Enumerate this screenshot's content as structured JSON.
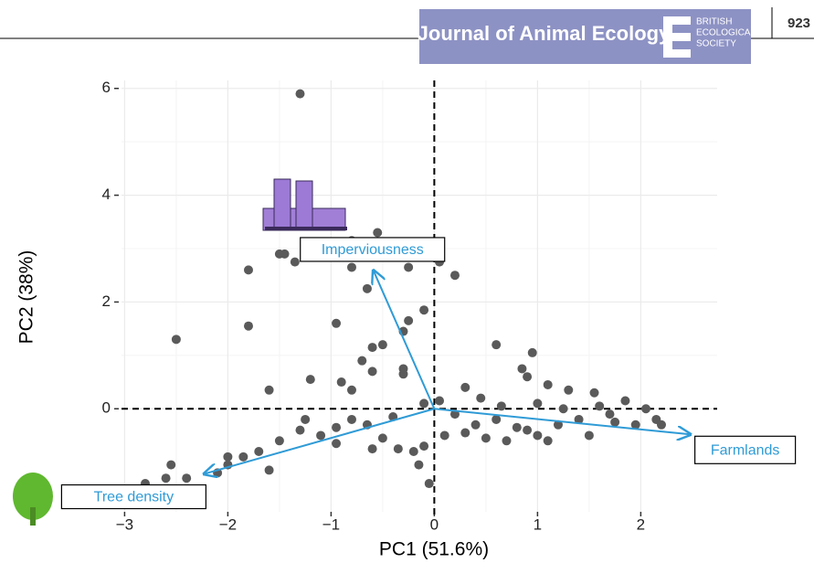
{
  "header": {
    "journal": "Journal of Animal Ecology",
    "society": [
      "BRITISH",
      "ECOLOGICAL",
      "SOCIETY"
    ],
    "page": "923"
  },
  "chart_data": {
    "type": "scatter",
    "x_label": "PC1 (51.6%)",
    "y_label": "PC2 (38%)",
    "xlim": [
      -3.03,
      2.74
    ],
    "ylim": [
      -1.93,
      6.15
    ],
    "xticks": [
      {
        "value": -3,
        "label": "−3"
      },
      {
        "value": -2,
        "label": "−2"
      },
      {
        "value": -1,
        "label": "−1"
      },
      0,
      1,
      2
    ],
    "yticks": [
      0,
      2,
      4,
      6
    ],
    "grid": true,
    "reference_lines": {
      "x": 0,
      "y": 0
    },
    "color": "#5a5a5a",
    "x": [
      -1.3,
      -2.5,
      -1.8,
      -1.5,
      -1.45,
      -1.35,
      -0.55,
      -0.8,
      -0.8,
      -0.65,
      -0.25,
      0.05,
      0.2,
      -1.8,
      -0.95,
      -0.5,
      -0.6,
      -0.25,
      -0.1,
      -0.3,
      -0.6,
      -0.3,
      -0.3,
      -0.7,
      -0.9,
      -1.2,
      -1.6,
      -0.8,
      -0.1,
      0.05,
      0.6,
      0.95,
      0.85,
      0.9,
      1.1,
      1.3,
      1.55,
      1.85,
      2.05,
      2.15,
      1.7,
      1.4,
      1.2,
      1.0,
      0.8,
      0.6,
      0.4,
      0.2,
      0.3,
      0.5,
      0.7,
      0.9,
      1.1,
      1.5,
      1.75,
      1.95,
      2.2,
      0.1,
      -0.1,
      -0.2,
      -0.35,
      -0.5,
      -0.65,
      -0.8,
      -0.95,
      -1.1,
      -1.3,
      -1.5,
      -1.7,
      -1.85,
      -2.0,
      -2.1,
      -2.4,
      -2.6,
      -2.55,
      -2.8,
      -1.6,
      -2.0,
      -0.6,
      -0.95,
      -1.25,
      -0.4,
      0.3,
      0.45,
      1.0,
      1.25,
      1.6,
      0.65,
      -0.15,
      -0.05
    ],
    "values": [
      5.9,
      1.3,
      2.6,
      2.9,
      2.9,
      2.75,
      3.3,
      3.15,
      2.65,
      2.25,
      2.65,
      2.75,
      2.5,
      1.55,
      1.6,
      1.2,
      1.15,
      1.65,
      1.85,
      1.45,
      0.7,
      0.75,
      0.65,
      0.9,
      0.5,
      0.55,
      0.35,
      0.35,
      0.1,
      0.15,
      1.2,
      1.05,
      0.75,
      0.6,
      0.45,
      0.35,
      0.3,
      0.15,
      0.0,
      -0.2,
      -0.1,
      -0.2,
      -0.3,
      -0.5,
      -0.35,
      -0.2,
      -0.3,
      -0.1,
      -0.45,
      -0.55,
      -0.6,
      -0.4,
      -0.6,
      -0.5,
      -0.25,
      -0.3,
      -0.3,
      -0.5,
      -0.7,
      -0.8,
      -0.75,
      -0.55,
      -0.3,
      -0.2,
      -0.35,
      -0.5,
      -0.4,
      -0.6,
      -0.8,
      -0.9,
      -1.05,
      -1.2,
      -1.3,
      -1.3,
      -1.05,
      -1.4,
      -1.15,
      -0.9,
      -0.75,
      -0.65,
      -0.2,
      -0.15,
      0.4,
      0.2,
      0.1,
      0.0,
      0.05,
      0.05,
      -1.05,
      -1.4
    ],
    "arrows": {
      "color": "#2f9bd6",
      "names": [
        "Imperviousness",
        "Farmlands",
        "Tree density"
      ],
      "x": [
        -0.59,
        2.48,
        -2.23
      ],
      "y": [
        2.59,
        -0.48,
        -1.22
      ]
    }
  }
}
